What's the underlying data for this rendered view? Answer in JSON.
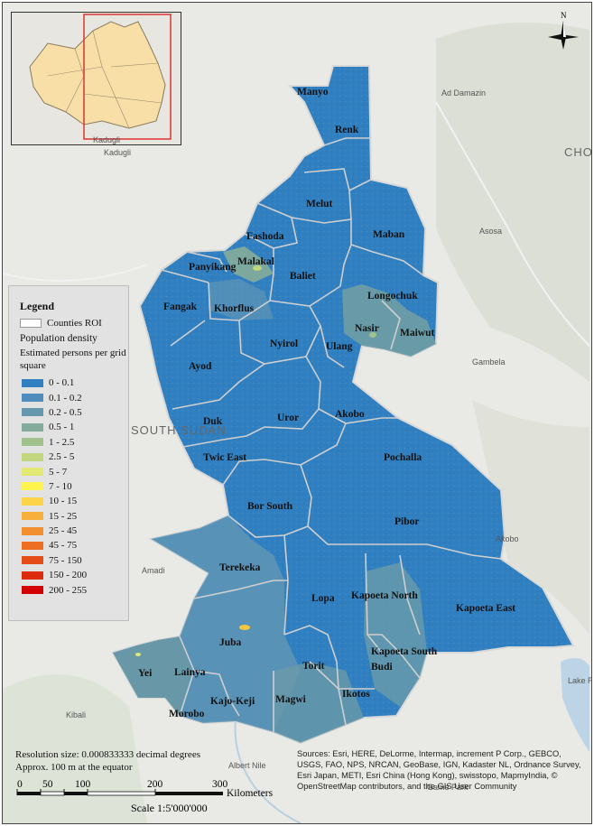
{
  "map": {
    "counties": [
      {
        "name": "Manyo"
      },
      {
        "name": "Renk"
      },
      {
        "name": "Melut"
      },
      {
        "name": "Fashoda"
      },
      {
        "name": "Maban"
      },
      {
        "name": "Panyikang"
      },
      {
        "name": "Malakal"
      },
      {
        "name": "Baliet"
      },
      {
        "name": "Longochuk"
      },
      {
        "name": "Fangak"
      },
      {
        "name": "Khorflus"
      },
      {
        "name": "Nasir"
      },
      {
        "name": "Maiwut"
      },
      {
        "name": "Nyirol"
      },
      {
        "name": "Ulang"
      },
      {
        "name": "Ayod"
      },
      {
        "name": "Akobo"
      },
      {
        "name": "Uror"
      },
      {
        "name": "Duk"
      },
      {
        "name": "Twic East"
      },
      {
        "name": "Pochalla"
      },
      {
        "name": "Bor South"
      },
      {
        "name": "Pibor"
      },
      {
        "name": "Terekeka"
      },
      {
        "name": "Lopa"
      },
      {
        "name": "Kapoeta North"
      },
      {
        "name": "Kapoeta East"
      },
      {
        "name": "Juba"
      },
      {
        "name": "Kapoeta South"
      },
      {
        "name": "Budi"
      },
      {
        "name": "Yei"
      },
      {
        "name": "Lainya"
      },
      {
        "name": "Torit"
      },
      {
        "name": "Ikotos"
      },
      {
        "name": "Magwi"
      },
      {
        "name": "Kajo-Keji"
      },
      {
        "name": "Morobo"
      }
    ],
    "basemap_places": [
      "Ad Damazin",
      "Asosa",
      "Gambela",
      "Amadi",
      "Kadugli",
      "Kibali",
      "Albert Nile",
      "Akobo",
      "Game Park",
      "Lake Rudolf",
      "SOUTH SUDAN",
      "CHO"
    ],
    "fill_colors": {
      "dominant": "#2f7fc1",
      "medium": "#5f95b5",
      "low": "#7fa8a4",
      "boundary": "#d0d0d0"
    }
  },
  "legend": {
    "title": "Legend",
    "roi_label": "Counties ROI",
    "subtitle": "Population density",
    "subtitle2": "Estimated persons per grid square",
    "classes": [
      {
        "label": "0 - 0.1",
        "color": "#2f7fc1"
      },
      {
        "label": "0.1 - 0.2",
        "color": "#4f8bbb"
      },
      {
        "label": "0.2 - 0.5",
        "color": "#6597ad"
      },
      {
        "label": "0.5 - 1",
        "color": "#83ac9d"
      },
      {
        "label": "1 - 2.5",
        "color": "#a1c28c"
      },
      {
        "label": "2.5 - 5",
        "color": "#c2d680"
      },
      {
        "label": "5 - 7",
        "color": "#e1e873"
      },
      {
        "label": "7 - 10",
        "color": "#fff44f"
      },
      {
        "label": "10 - 15",
        "color": "#fdd34a"
      },
      {
        "label": "15 - 25",
        "color": "#f8b03d"
      },
      {
        "label": "25 - 45",
        "color": "#f2902f"
      },
      {
        "label": "45 - 75",
        "color": "#ec6f23"
      },
      {
        "label": "75 - 150",
        "color": "#e54d18"
      },
      {
        "label": "150 - 200",
        "color": "#de2c0e"
      },
      {
        "label": "200 - 255",
        "color": "#d40000"
      }
    ]
  },
  "footer": {
    "resolution_line1": "Resolution size: 0.000833333 decimal degrees",
    "resolution_line2": "Approx. 100 m at the equator",
    "scale_ticks": [
      "0",
      "50",
      "100",
      "200",
      "300"
    ],
    "scale_unit": "Kilometers",
    "scale_text": "Scale 1:5'000'000",
    "sources": "Sources: Esri, HERE, DeLorme, Intermap, increment P Corp., GEBCO, USGS, FAO, NPS, NRCAN, GeoBase, IGN, Kadaster NL, Ordnance Survey, Esri Japan, METI, Esri China (Hong Kong), swisstopo, MapmyIndia, © OpenStreetMap contributors, and the GIS User Community"
  },
  "north_arrow": {
    "label": "N"
  },
  "inset": {
    "place": "Kadugli"
  }
}
